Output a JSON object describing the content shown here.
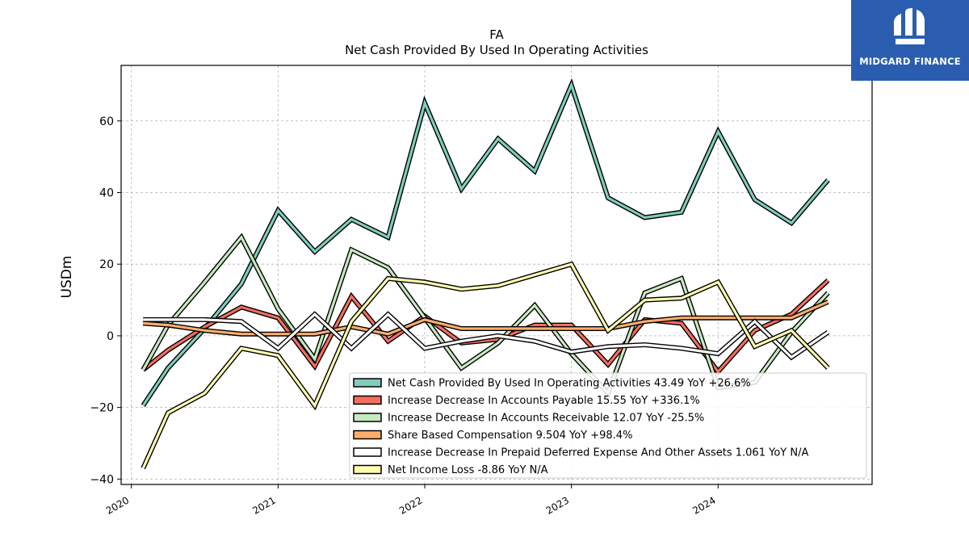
{
  "logo": {
    "text": "MIDGARD FINANCE"
  },
  "chart_data": {
    "type": "line",
    "title": "FA",
    "subtitle": "Net Cash Provided By Used In Operating Activities",
    "xlabel": "",
    "ylabel": "USDm",
    "xlim": [
      2019.93,
      2025.05
    ],
    "ylim": [
      -41.5,
      75.5
    ],
    "yticks": [
      -40,
      -20,
      0,
      20,
      40,
      60
    ],
    "xticks": [
      "2020",
      "2021",
      "2022",
      "2023",
      "2024"
    ],
    "grid": true,
    "legend_position": "lower-right",
    "x": [
      2020.08,
      2020.25,
      2020.5,
      2020.75,
      2021.0,
      2021.25,
      2021.5,
      2021.75,
      2022.0,
      2022.25,
      2022.5,
      2022.75,
      2023.0,
      2023.25,
      2023.5,
      2023.75,
      2024.0,
      2024.25,
      2024.5,
      2024.75
    ],
    "series": [
      {
        "name": "Net Cash Provided By Used In Operating Activities",
        "legend": "Net Cash Provided By Used In Operating Activities  43.49 YoY +26.6%",
        "color": "#7fcdbb",
        "values": [
          -19.5,
          -9,
          2,
          14.5,
          35,
          23.5,
          32.5,
          27.5,
          65,
          41,
          55,
          46,
          70,
          38.5,
          33,
          34.5,
          57,
          38,
          31.5,
          43.5
        ]
      },
      {
        "name": "Increase Decrease In Accounts Payable",
        "legend": "Increase Decrease In Accounts Payable  15.55 YoY +336.1%",
        "color": "#f46d5e",
        "values": [
          -9.5,
          -4,
          2.5,
          8,
          5,
          -8.5,
          11,
          -1.5,
          5.5,
          -2,
          -1,
          3,
          3,
          -8,
          4.5,
          3.5,
          -10,
          1.5,
          6,
          15.5
        ]
      },
      {
        "name": "Increase Decrease In Accounts Receivable",
        "legend": "Increase Decrease In Accounts Receivable  12.07 YoY -25.5%",
        "color": "#c7e9c0",
        "values": [
          -9.5,
          3,
          15,
          27.5,
          7.5,
          -6.5,
          24,
          19,
          5,
          -9,
          -2,
          8.5,
          -5,
          -16,
          12,
          16,
          -14.5,
          -13,
          1,
          12
        ]
      },
      {
        "name": "Share Based Compensation",
        "legend": "Share Based Compensation  9.504 YoY +98.4%",
        "color": "#fdae6b",
        "values": [
          3.5,
          3,
          1.5,
          0.5,
          0.5,
          0.5,
          2.5,
          0.5,
          4.5,
          2,
          2,
          2,
          2,
          2,
          4,
          5,
          5,
          5,
          5,
          9.5
        ]
      },
      {
        "name": "Increase Decrease In Prepaid Deferred Expense And Other Assets",
        "legend": "Increase Decrease In Prepaid Deferred Expense And Other Assets  1.061 YoY N/A",
        "color": "#ffffff",
        "values": [
          4.5,
          4.5,
          4.5,
          4,
          -3.5,
          6,
          -3.5,
          6,
          -3.5,
          -1.5,
          0,
          -1.5,
          -4.5,
          -3,
          -2.5,
          -3.5,
          -5,
          4,
          -6,
          1
        ]
      },
      {
        "name": "Net Income Loss",
        "legend": "Net Income Loss  -8.86 YoY N/A",
        "color": "#ffffb2",
        "values": [
          -37,
          -21.5,
          -16,
          -3.5,
          -5.5,
          -19.5,
          4,
          16,
          15,
          13,
          14,
          17,
          20,
          1.5,
          10,
          10.5,
          15,
          -3,
          1.5,
          -9
        ]
      }
    ]
  }
}
